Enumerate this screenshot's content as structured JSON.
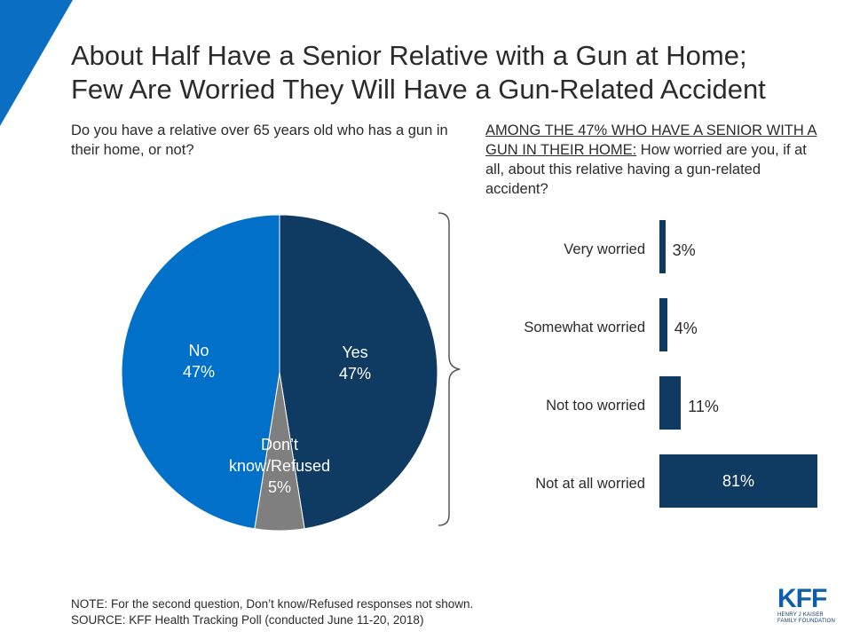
{
  "colors": {
    "navy": "#0f3b63",
    "blue": "#0070c9",
    "gray": "#7f7f7f",
    "corner_blue": "#0a6fc2"
  },
  "title": {
    "line1": "About Half Have a Senior Relative with a Gun at Home;",
    "line2": "Few Are Worried They Will Have a Gun-Related Accident"
  },
  "question1": "Do you have a relative over 65 years old who has a gun in their home, or not?",
  "question2": {
    "underlined": "AMONG THE 47% WHO HAVE A SENIOR WITH A GUN IN THEIR HOME:",
    "rest": " How worried are you, if at all, about this relative having a gun-related accident?"
  },
  "chart_data": [
    {
      "type": "pie",
      "slices": [
        {
          "label": "Yes",
          "value": 47,
          "display": "47%",
          "color": "#0f3b63"
        },
        {
          "label": "Don’t know/Refused",
          "value": 5,
          "display": "5%",
          "color": "#7f7f7f"
        },
        {
          "label": "No",
          "value": 47,
          "display": "47%",
          "color": "#0070c9"
        }
      ]
    },
    {
      "type": "bar",
      "orientation": "horizontal",
      "categories": [
        "Very worried",
        "Somewhat worried",
        "Not too worried",
        "Not at all worried"
      ],
      "values": [
        3,
        4,
        11,
        81
      ],
      "labels": [
        "3%",
        "4%",
        "11%",
        "81%"
      ],
      "color": "#0f3b63"
    }
  ],
  "notes": {
    "note": "NOTE: For the second question, Don’t know/Refused responses not shown.",
    "source": "SOURCE: KFF Health Tracking Poll (conducted June 11-20, 2018)"
  },
  "logo": {
    "text": "KFF",
    "sub1": "HENRY J KAISER",
    "sub2": "FAMILY FOUNDATION"
  }
}
